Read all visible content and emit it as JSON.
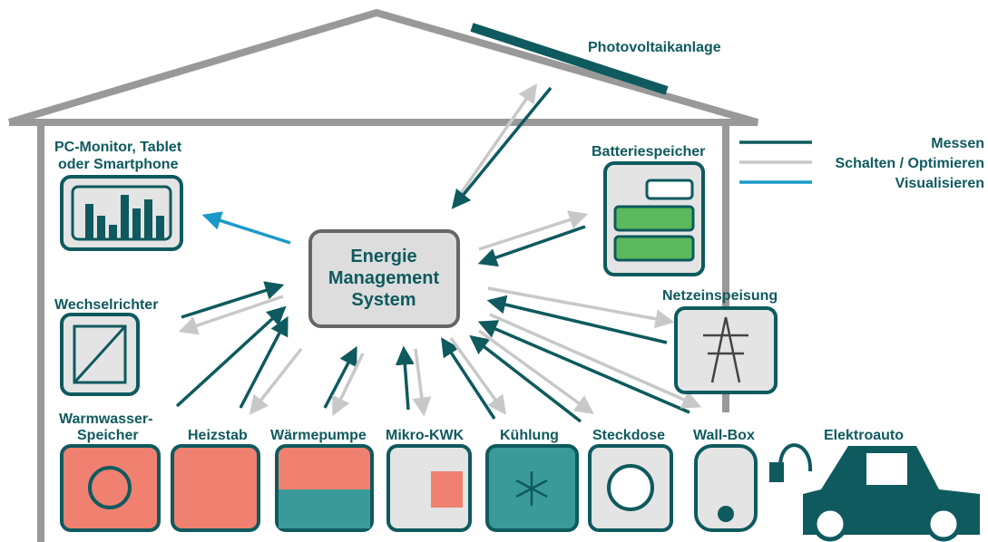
{
  "pv": {
    "label": "Photovoltaikanlage"
  },
  "legend": [
    {
      "label": "Messen"
    },
    {
      "label": "Schalten / Optimieren"
    },
    {
      "label": "Visualisieren"
    }
  ],
  "center": {
    "lines": [
      "Energie",
      "Management",
      "System"
    ]
  },
  "nodes": [
    {
      "lines": [
        "PC-Monitor, Tablet",
        "oder Smartphone"
      ]
    },
    {
      "lines": [
        "Batteriespeicher"
      ]
    },
    {
      "lines": [
        "Wechselrichter"
      ]
    },
    {
      "lines": [
        "Netzeinspeisung"
      ]
    },
    {
      "lines": [
        "Warmwasser-",
        "Speicher"
      ]
    },
    {
      "lines": [
        "Heizstab"
      ]
    },
    {
      "lines": [
        "Wärmepumpe"
      ]
    },
    {
      "lines": [
        "Mikro-KWK"
      ]
    },
    {
      "lines": [
        "Kühlung"
      ]
    },
    {
      "lines": [
        "Steckdose"
      ]
    },
    {
      "lines": [
        "Wall-Box"
      ]
    },
    {
      "lines": [
        "Elektroauto"
      ]
    }
  ]
}
